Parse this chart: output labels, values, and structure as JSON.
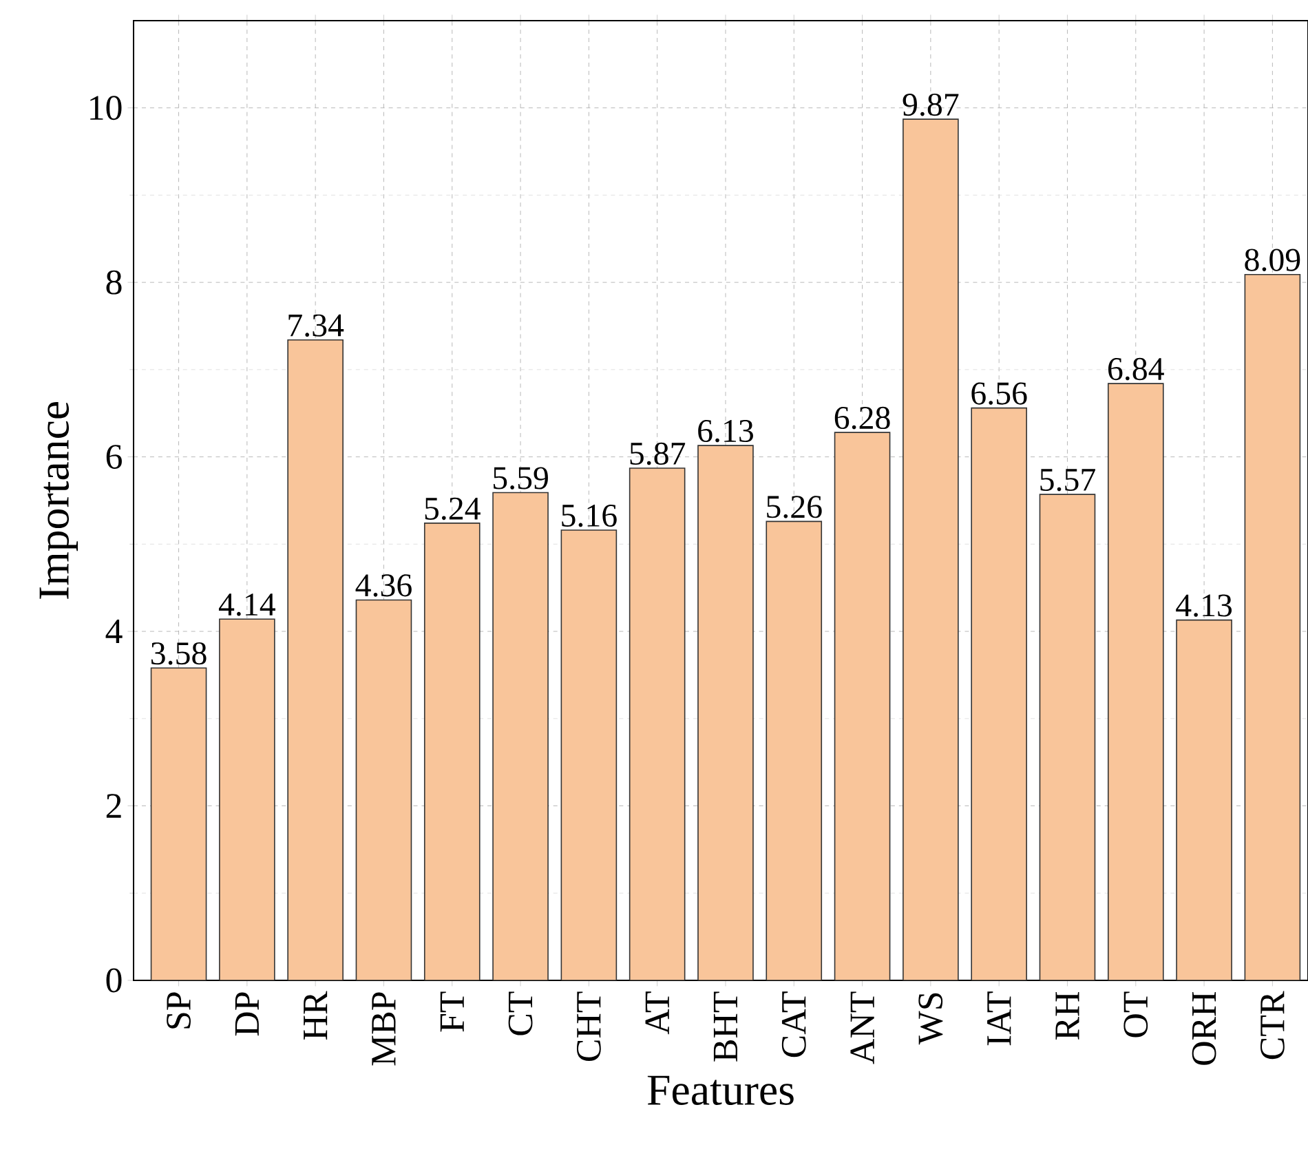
{
  "chart_data": {
    "type": "bar",
    "xlabel": "Features",
    "ylabel": "Importance",
    "categories": [
      "SP",
      "DP",
      "HR",
      "MBP",
      "FT",
      "CT",
      "CHT",
      "AT",
      "BHT",
      "CAT",
      "ANT",
      "WS",
      "IAT",
      "RH",
      "OT",
      "ORH",
      "CTR"
    ],
    "values": [
      3.58,
      4.14,
      7.34,
      4.36,
      5.24,
      5.59,
      5.16,
      5.87,
      6.13,
      5.26,
      6.28,
      9.87,
      6.56,
      5.57,
      6.84,
      4.13,
      8.09
    ],
    "color": "#f9c59a",
    "ylim": [
      0,
      11
    ],
    "yticks": [
      0,
      2,
      4,
      6,
      8,
      10
    ],
    "grid": true,
    "data_labels": true
  }
}
